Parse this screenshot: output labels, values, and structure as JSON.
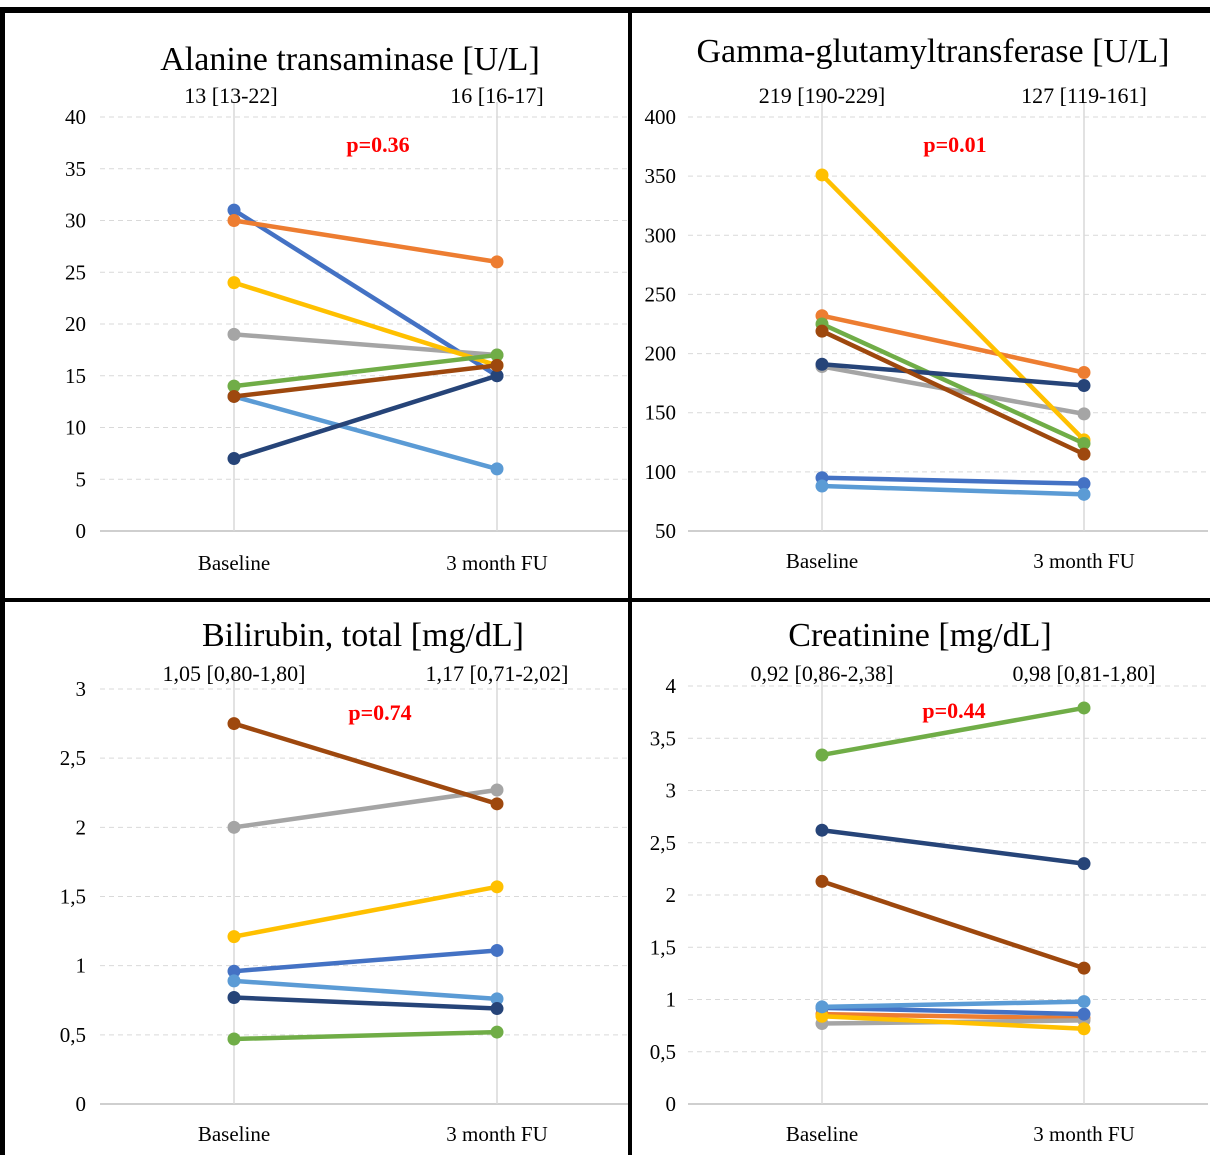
{
  "layout_grid": {
    "rows": 2,
    "cols": 2
  },
  "style": {
    "border_color": "#000000",
    "gridline_color": "#d9d9d9",
    "p_value_color": "#ff0000"
  },
  "series_colors": [
    "#4472c4",
    "#ed7d31",
    "#a5a5a5",
    "#ffc000",
    "#5b9bd5",
    "#70ad47",
    "#264478",
    "#9e480e"
  ],
  "chart_data": [
    {
      "type": "line",
      "title": "Alanine transaminase [U/L]",
      "medians": [
        "13 [13-22]",
        "16 [16-17]"
      ],
      "p_value": "p=0.36",
      "categories": [
        "Baseline",
        "3 month FU"
      ],
      "ylim": [
        0,
        40
      ],
      "yticks": [
        0,
        5,
        10,
        15,
        20,
        25,
        30,
        35,
        40
      ],
      "ytick_labels": [
        "0",
        "5",
        "10",
        "15",
        "20",
        "25",
        "30",
        "35",
        "40"
      ],
      "grid": true,
      "series": [
        {
          "color": "#4472c4",
          "values": [
            31,
            15
          ]
        },
        {
          "color": "#ed7d31",
          "values": [
            30,
            26
          ]
        },
        {
          "color": "#a5a5a5",
          "values": [
            19,
            17
          ]
        },
        {
          "color": "#ffc000",
          "values": [
            24,
            16
          ]
        },
        {
          "color": "#5b9bd5",
          "values": [
            13,
            6
          ]
        },
        {
          "color": "#70ad47",
          "values": [
            14,
            17
          ]
        },
        {
          "color": "#264478",
          "values": [
            7,
            15
          ]
        },
        {
          "color": "#9e480e",
          "values": [
            13,
            16
          ]
        }
      ]
    },
    {
      "type": "line",
      "title": "Gamma-glutamyltransferase [U/L]",
      "medians": [
        "219 [190-229]",
        "127 [119-161]"
      ],
      "p_value": "p=0.01",
      "categories": [
        "Baseline",
        "3 month FU"
      ],
      "ylim": [
        50,
        400
      ],
      "yticks": [
        50,
        100,
        150,
        200,
        250,
        300,
        350,
        400
      ],
      "ytick_labels": [
        "50",
        "100",
        "150",
        "200",
        "250",
        "300",
        "350",
        "400"
      ],
      "grid": true,
      "series": [
        {
          "color": "#4472c4",
          "values": [
            95,
            90
          ]
        },
        {
          "color": "#ed7d31",
          "values": [
            232,
            184
          ]
        },
        {
          "color": "#a5a5a5",
          "values": [
            189,
            149
          ]
        },
        {
          "color": "#ffc000",
          "values": [
            351,
            127
          ]
        },
        {
          "color": "#5b9bd5",
          "values": [
            88,
            81
          ]
        },
        {
          "color": "#70ad47",
          "values": [
            225,
            124
          ]
        },
        {
          "color": "#264478",
          "values": [
            191,
            173
          ]
        },
        {
          "color": "#9e480e",
          "values": [
            219,
            115
          ]
        }
      ]
    },
    {
      "type": "line",
      "title": "Bilirubin, total [mg/dL]",
      "medians": [
        "1,05 [0,80-1,80]",
        "1,17 [0,71-2,02]"
      ],
      "p_value": "p=0.74",
      "categories": [
        "Baseline",
        "3 month FU"
      ],
      "ylim": [
        0,
        3
      ],
      "yticks": [
        0,
        0.5,
        1,
        1.5,
        2,
        2.5,
        3
      ],
      "ytick_labels": [
        "0",
        "0,5",
        "1",
        "1,5",
        "2",
        "2,5",
        "3"
      ],
      "grid": true,
      "series": [
        {
          "color": "#4472c4",
          "values": [
            0.96,
            1.11
          ]
        },
        {
          "color": "#a5a5a5",
          "values": [
            2.0,
            2.27
          ]
        },
        {
          "color": "#ffc000",
          "values": [
            1.21,
            1.57
          ]
        },
        {
          "color": "#5b9bd5",
          "values": [
            0.89,
            0.76
          ]
        },
        {
          "color": "#70ad47",
          "values": [
            0.47,
            0.52
          ]
        },
        {
          "color": "#264478",
          "values": [
            0.77,
            0.69
          ]
        },
        {
          "color": "#9e480e",
          "values": [
            2.75,
            2.17
          ]
        }
      ]
    },
    {
      "type": "line",
      "title": "Creatinine [mg/dL]",
      "medians": [
        "0,92 [0,86-2,38]",
        "0,98 [0,81-1,80]"
      ],
      "p_value": "p=0.44",
      "categories": [
        "Baseline",
        "3 month FU"
      ],
      "ylim": [
        0,
        4
      ],
      "yticks": [
        0,
        0.5,
        1,
        1.5,
        2,
        2.5,
        3,
        3.5,
        4
      ],
      "ytick_labels": [
        "0",
        "0,5",
        "1",
        "1,5",
        "2",
        "2,5",
        "3",
        "3,5",
        "4"
      ],
      "grid": true,
      "series": [
        {
          "color": "#ed7d31",
          "values": [
            0.86,
            0.82
          ]
        },
        {
          "color": "#a5a5a5",
          "values": [
            0.77,
            0.8
          ]
        },
        {
          "color": "#9e480e",
          "values": [
            2.13,
            1.3
          ]
        },
        {
          "color": "#264478",
          "values": [
            2.62,
            2.3
          ]
        },
        {
          "color": "#70ad47",
          "values": [
            3.34,
            3.79
          ]
        },
        {
          "color": "#4472c4",
          "values": [
            0.92,
            0.86
          ]
        },
        {
          "color": "#ffc000",
          "values": [
            0.84,
            0.72
          ]
        },
        {
          "color": "#5b9bd5",
          "values": [
            0.93,
            0.98
          ]
        }
      ]
    }
  ]
}
